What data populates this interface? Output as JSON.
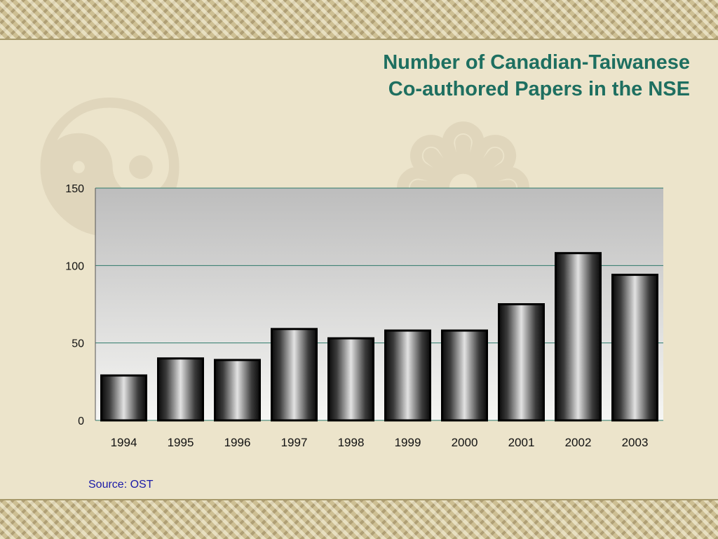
{
  "slide": {
    "title_line1": "Number of Canadian-Taiwanese",
    "title_line2": "Co-authored Papers in the NSE",
    "source": "Source: OST"
  },
  "colors": {
    "title": "#1e6f60",
    "source": "#1a1aa8",
    "gridline": "#2e7a6a",
    "background": "#ece4cb",
    "border": "#cdbf93"
  },
  "chart_data": {
    "type": "bar",
    "categories": [
      "1994",
      "1995",
      "1996",
      "1997",
      "1998",
      "1999",
      "2000",
      "2001",
      "2002",
      "2003"
    ],
    "values": [
      29,
      40,
      39,
      59,
      53,
      58,
      58,
      75,
      108,
      94
    ],
    "ylim": [
      0,
      150
    ],
    "yticks": [
      "0",
      "50",
      "100",
      "150"
    ],
    "title": "",
    "xlabel": "",
    "ylabel": "",
    "grid": true,
    "legend": "none"
  }
}
